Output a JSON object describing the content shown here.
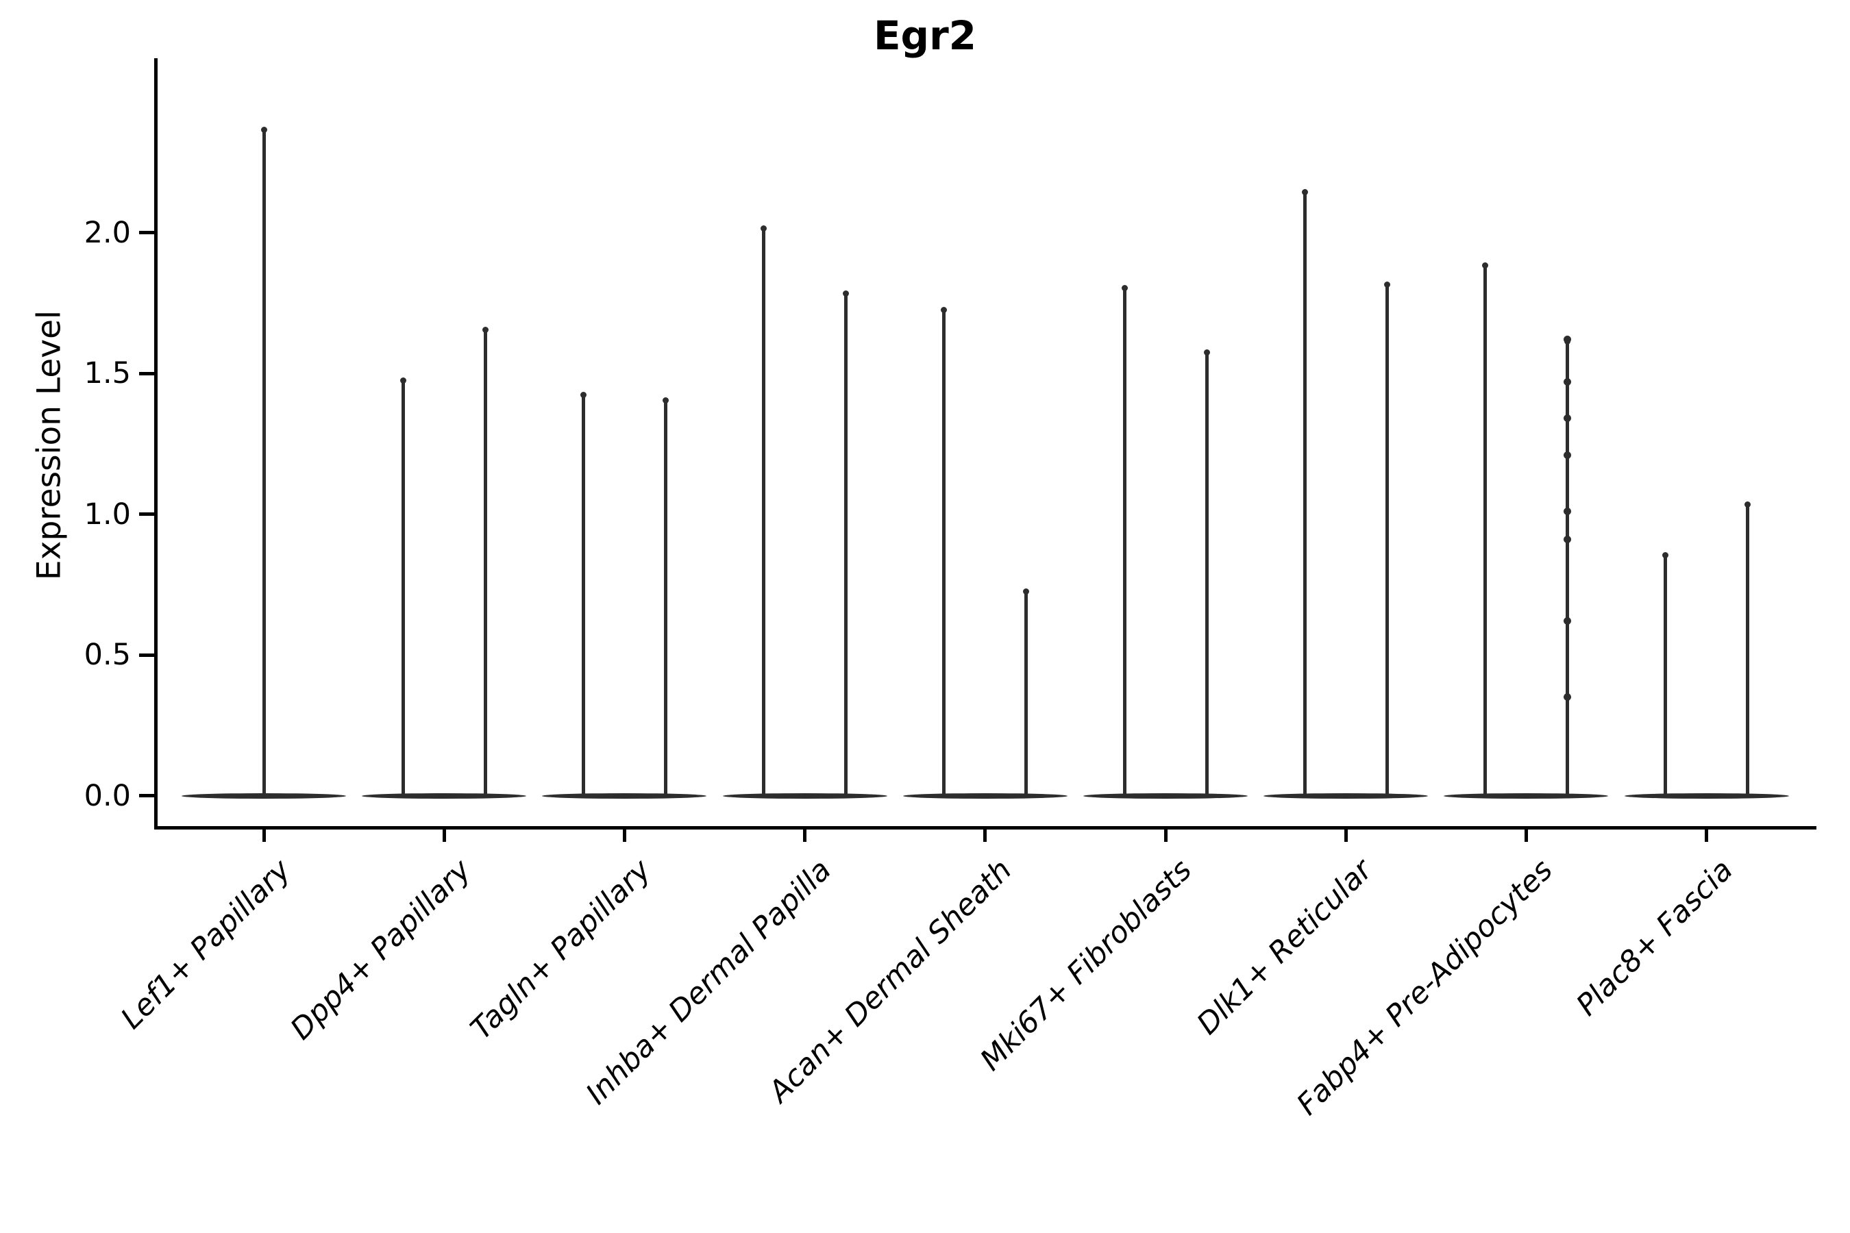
{
  "title": "Egr2",
  "y_axis": {
    "label": "Expression Level",
    "tick_labels": [
      "2.0",
      "1.5",
      "1.0",
      "0.5",
      "0.0"
    ]
  },
  "chart_data": {
    "type": "violin",
    "title": "Egr2",
    "xlabel": "",
    "ylabel": "Expression Level",
    "ylim": [
      0,
      2.62
    ],
    "y_ticks": [
      0.0,
      0.5,
      1.0,
      1.5,
      2.0
    ],
    "grid": false,
    "legend": "none",
    "color": "#2d2d2d",
    "description": "Violin plot of Egr2 expression; violins are flattened at 0 (most cells zero) with thin density spikes rising to the maximum expression value. First category has one violin; all others have two side-by-side violins.",
    "categories": [
      "Lef1+ Papillary",
      "Dpp4+ Papillary",
      "Tagln+ Papillary",
      "Inhba+ Dermal Papilla",
      "Acan+ Dermal Sheath",
      "Mki67+ Fibroblasts",
      "Dlk1+ Reticular",
      "Fabp4+ Pre-Adipocytes",
      "Plac8+ Fascia"
    ],
    "violins": [
      {
        "category": "Lef1+ Papillary",
        "spikes": [
          {
            "position": "center",
            "max": 2.37
          }
        ]
      },
      {
        "category": "Dpp4+ Papillary",
        "spikes": [
          {
            "position": "left",
            "max": 1.48
          },
          {
            "position": "right",
            "max": 1.66
          }
        ]
      },
      {
        "category": "Tagln+ Papillary",
        "spikes": [
          {
            "position": "left",
            "max": 1.43
          },
          {
            "position": "right",
            "max": 1.41
          }
        ]
      },
      {
        "category": "Inhba+ Dermal Papilla",
        "spikes": [
          {
            "position": "left",
            "max": 2.02
          },
          {
            "position": "right",
            "max": 1.79
          }
        ]
      },
      {
        "category": "Acan+ Dermal Sheath",
        "spikes": [
          {
            "position": "left",
            "max": 1.73
          },
          {
            "position": "right",
            "max": 0.73
          }
        ]
      },
      {
        "category": "Mki67+ Fibroblasts",
        "spikes": [
          {
            "position": "left",
            "max": 1.81
          },
          {
            "position": "right",
            "max": 1.58
          }
        ]
      },
      {
        "category": "Dlk1+ Reticular",
        "spikes": [
          {
            "position": "left",
            "max": 2.15
          },
          {
            "position": "right",
            "max": 1.82
          }
        ]
      },
      {
        "category": "Fabp4+ Pre-Adipocytes",
        "spikes": [
          {
            "position": "left",
            "max": 1.89
          },
          {
            "position": "right",
            "max": 1.62,
            "points": [
              1.62,
              1.47,
              1.34,
              1.21,
              1.01,
              0.91,
              0.62,
              0.35
            ]
          }
        ]
      },
      {
        "category": "Plac8+ Fascia",
        "spikes": [
          {
            "position": "left",
            "max": 0.86
          },
          {
            "position": "right",
            "max": 1.04
          }
        ]
      }
    ]
  }
}
